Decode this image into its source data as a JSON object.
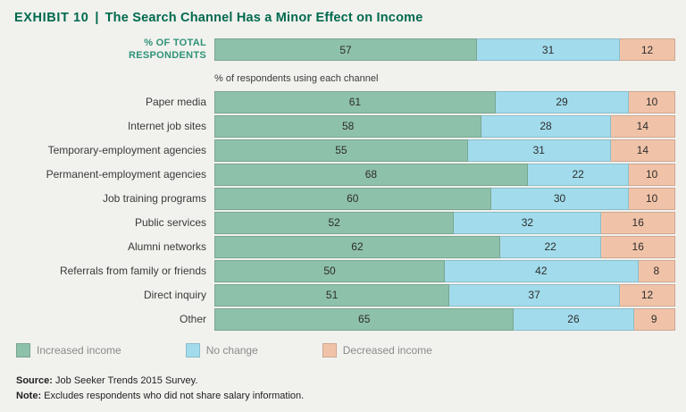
{
  "title": {
    "exhibit": "EXHIBIT 10",
    "separator": "|",
    "main": "The Search Channel Has a Minor Effect on Income"
  },
  "chart_data": {
    "type": "bar",
    "orientation": "horizontal",
    "stacked": true,
    "xlim": [
      0,
      100
    ],
    "total_row": {
      "label": "% OF TOTAL RESPONDENTS",
      "values": [
        57,
        31,
        12
      ]
    },
    "group_label": "% of respondents using each channel",
    "categories": [
      "Paper media",
      "Internet job sites",
      "Temporary-employment agencies",
      "Permanent-employment agencies",
      "Job training programs",
      "Public services",
      "Alumni networks",
      "Referrals from family or friends",
      "Direct inquiry",
      "Other"
    ],
    "series": [
      {
        "name": "Increased income",
        "key": "increased-income",
        "color": "#8ec1a9",
        "values": [
          61,
          58,
          55,
          68,
          60,
          52,
          62,
          50,
          51,
          65
        ]
      },
      {
        "name": "No change",
        "key": "no-change",
        "color": "#a2dcec",
        "values": [
          29,
          28,
          31,
          22,
          30,
          32,
          22,
          42,
          37,
          26
        ]
      },
      {
        "name": "Decreased income",
        "key": "decreased-income",
        "color": "#f0c3a8",
        "values": [
          10,
          14,
          14,
          10,
          10,
          16,
          16,
          8,
          12,
          9
        ]
      }
    ],
    "legend_position": "bottom",
    "grid": false
  },
  "footer": {
    "source_label": "Source:",
    "source_text": "Job Seeker Trends 2015 Survey.",
    "note_label": "Note:",
    "note_text": "Excludes respondents who did not share salary information."
  }
}
